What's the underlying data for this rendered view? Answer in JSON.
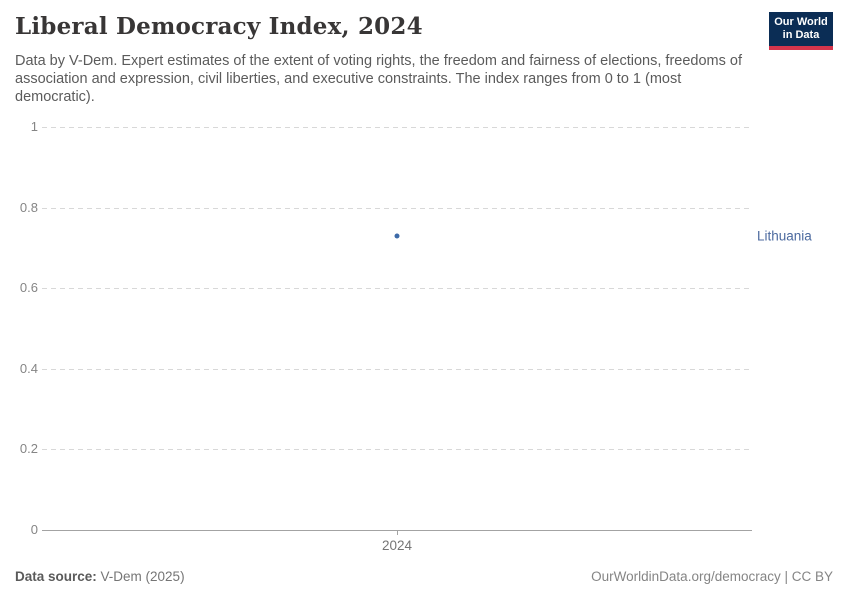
{
  "header": {
    "title": "Liberal Democracy Index, 2024",
    "subtitle": "Data by V-Dem. Expert estimates of the extent of voting rights, the freedom and fairness of elections, freedoms of association and expression, civil liberties, and executive constraints. The index ranges from 0 to 1 (most democratic).",
    "logo": {
      "line1": "Our World",
      "line2": "in Data",
      "bg_color": "#0b2d55",
      "accent_color": "#d5354c"
    }
  },
  "chart_data": {
    "type": "scatter",
    "title": "Liberal Democracy Index, 2024",
    "x": [
      2024
    ],
    "series": [
      {
        "name": "Lithuania",
        "values": [
          0.73
        ]
      }
    ],
    "xlabel": "",
    "ylabel": "",
    "ylim": [
      0,
      1
    ],
    "yticks": [
      0,
      0.2,
      0.4,
      0.6,
      0.8,
      1
    ],
    "xticks": [
      "2024"
    ],
    "grid": true,
    "legend_position": "right-of-point",
    "point_color": "#3d6aa8",
    "label_color": "#4c6a9f"
  },
  "footer": {
    "source_label": "Data source:",
    "source_value": " V-Dem (2025)",
    "right_text": "OurWorldinData.org/democracy | CC BY"
  }
}
